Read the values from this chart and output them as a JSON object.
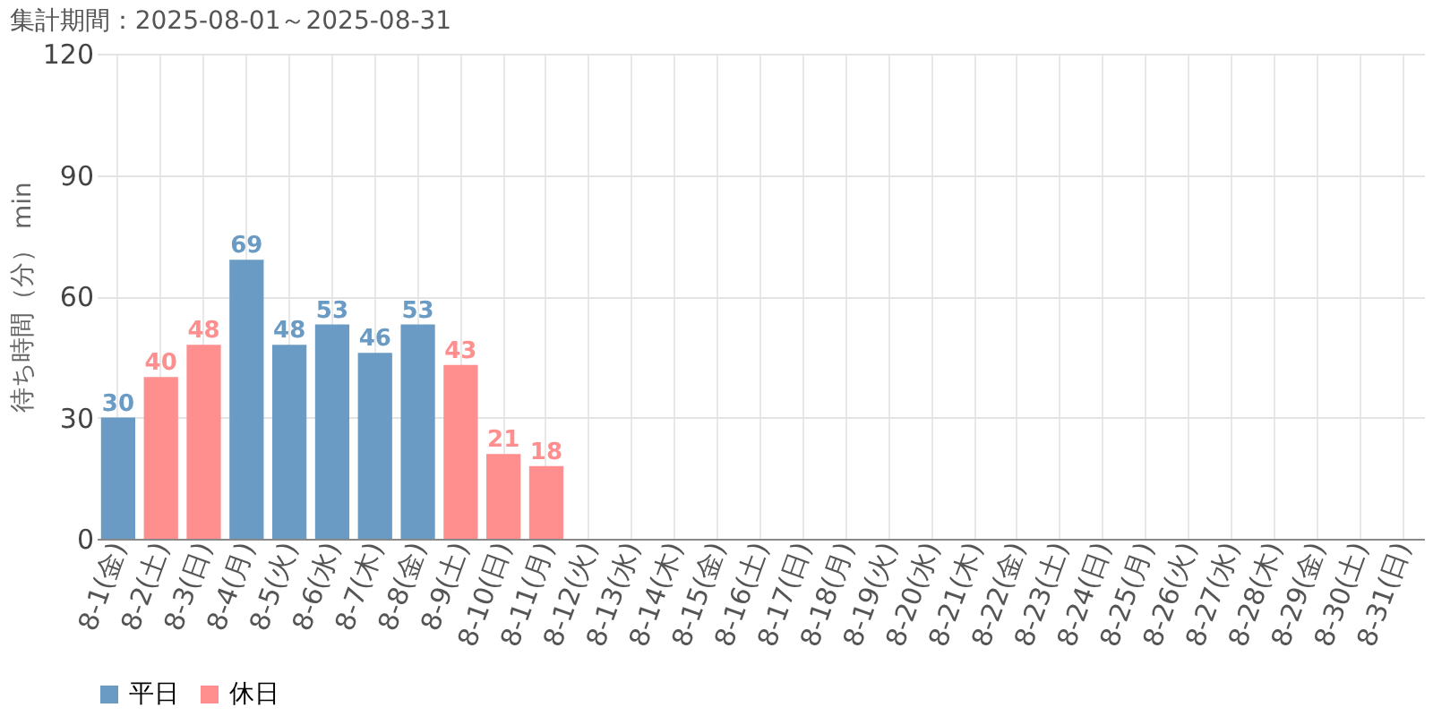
{
  "chart_data": {
    "type": "bar",
    "title": "集計期間：2025-08-01～2025-08-31",
    "ylabel": "待ち時間（分） min",
    "categories": [
      "8-1(金)",
      "8-2(土)",
      "8-3(日)",
      "8-4(月)",
      "8-5(火)",
      "8-6(水)",
      "8-7(木)",
      "8-8(金)",
      "8-9(土)",
      "8-10(日)",
      "8-11(月)",
      "8-12(火)",
      "8-13(水)",
      "8-14(木)",
      "8-15(金)",
      "8-16(土)",
      "8-17(日)",
      "8-18(月)",
      "8-19(火)",
      "8-20(水)",
      "8-21(木)",
      "8-22(金)",
      "8-23(土)",
      "8-24(日)",
      "8-25(月)",
      "8-26(火)",
      "8-27(水)",
      "8-28(木)",
      "8-29(金)",
      "8-30(土)",
      "8-31(日)"
    ],
    "series": [
      {
        "name": "平日",
        "color": "#6a9bc4",
        "values": [
          30,
          null,
          null,
          69,
          48,
          53,
          46,
          53,
          null,
          null,
          null,
          null,
          null,
          null,
          null,
          null,
          null,
          null,
          null,
          null,
          null,
          null,
          null,
          null,
          null,
          null,
          null,
          null,
          null,
          null,
          null
        ]
      },
      {
        "name": "休日",
        "color": "#ff8f8f",
        "values": [
          null,
          40,
          48,
          null,
          null,
          null,
          null,
          null,
          43,
          21,
          18,
          null,
          null,
          null,
          null,
          null,
          null,
          null,
          null,
          null,
          null,
          null,
          null,
          null,
          null,
          null,
          null,
          null,
          null,
          null,
          null
        ]
      }
    ],
    "ylim": [
      0,
      120
    ],
    "yticks": [
      0,
      30,
      60,
      90,
      120
    ],
    "grid": true,
    "legend": "bottom left",
    "data_labels": true
  }
}
